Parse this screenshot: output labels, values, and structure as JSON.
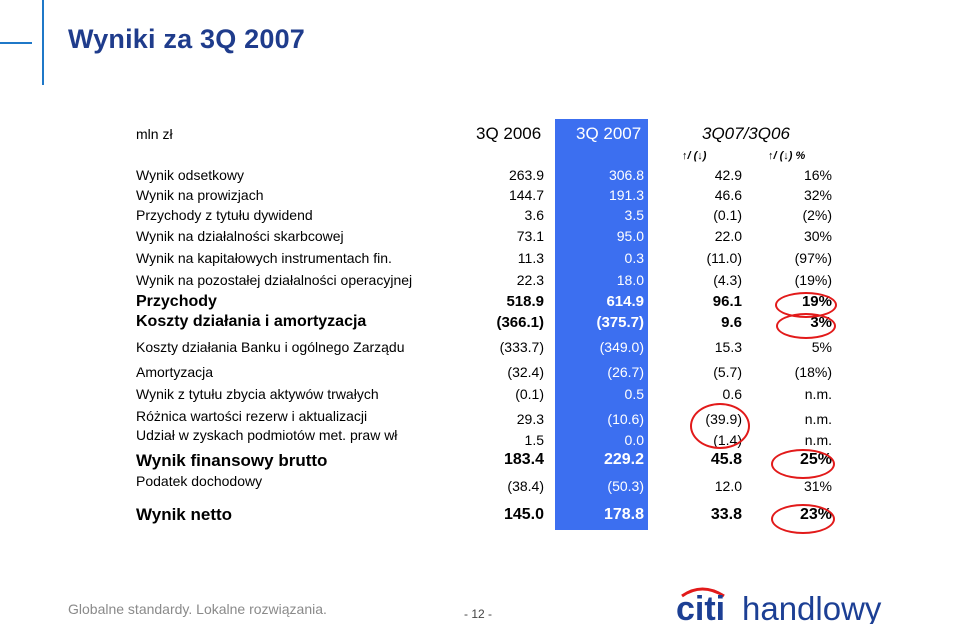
{
  "title": "Wyniki za 3Q 2007",
  "header": {
    "unit": "mln zł",
    "col1": "3Q 2006",
    "col2": "3Q 2007",
    "col3": "3Q07/3Q06",
    "sub_a": "↑/ (↓)",
    "sub_b": "↑/ (↓) %"
  },
  "rows": [
    {
      "label": "Wynik odsetkowy",
      "v1": "263.9",
      "v2": "306.8",
      "v3": "42.9",
      "v4": "16%"
    },
    {
      "label": "Wynik na prowizjach",
      "v1": "144.7",
      "v2": "191.3",
      "v3": "46.6",
      "v4": "32%"
    },
    {
      "label": "Przychody z tytułu dywidend",
      "v1": "3.6",
      "v2": "3.5",
      "v3": "(0.1)",
      "v4": "(2%)"
    },
    {
      "label": "Wynik na działalności skarbcowej",
      "v1": "73.1",
      "v2": "95.0",
      "v3": "22.0",
      "v4": "30%"
    },
    {
      "label": "Wynik na kapitałowych instrumentach fin.",
      "v1": "11.3",
      "v2": "0.3",
      "v3": "(11.0)",
      "v4": "(97%)"
    },
    {
      "label": "Wynik na pozostałej działalności operacyjnej",
      "v1": "22.3",
      "v2": "18.0",
      "v3": "(4.3)",
      "v4": "(19%)"
    },
    {
      "label": "Przychody",
      "v1": "518.9",
      "v2": "614.9",
      "v3": "96.1",
      "v4": "19%"
    },
    {
      "label": "Koszty działania i amortyzacja",
      "v1": "(366.1)",
      "v2": "(375.7)",
      "v3": "9.6",
      "v4": "3%"
    },
    {
      "label": "Koszty działania Banku i ogólnego Zarządu",
      "v1": "(333.7)",
      "v2": "(349.0)",
      "v3": "15.3",
      "v4": "5%"
    },
    {
      "label": "Amortyzacja",
      "v1": "(32.4)",
      "v2": "(26.7)",
      "v3": "(5.7)",
      "v4": "(18%)"
    },
    {
      "label": "Wynik z tytułu zbycia aktywów trwałych",
      "v1": "(0.1)",
      "v2": "0.5",
      "v3": "0.6",
      "v4": "n.m."
    },
    {
      "label": "Różnica wartości rezerw i aktualizacji",
      "v1": "29.3",
      "v2": "(10.6)",
      "v3": "(39.9)",
      "v4": "n.m."
    },
    {
      "label": "Udział w zyskach podmiotów met. praw wł",
      "v1": "1.5",
      "v2": "0.0",
      "v3": "(1.4)",
      "v4": "n.m."
    },
    {
      "label": "Wynik finansowy brutto",
      "v1": "183.4",
      "v2": "229.2",
      "v3": "45.8",
      "v4": "25%"
    },
    {
      "label": "Podatek dochodowy",
      "v1": "(38.4)",
      "v2": "(50.3)",
      "v3": "12.0",
      "v4": "31%"
    },
    {
      "label": "Wynik netto",
      "v1": "145.0",
      "v2": "178.8",
      "v3": "33.8",
      "v4": "23%"
    }
  ],
  "footer": {
    "slogan": "Globalne standardy. Lokalne rozwiązania.",
    "page": "- 12 -",
    "logo_text": "citi handlowy"
  },
  "colors": {
    "title": "#1f3c8c",
    "accent_line": "#1f78c8",
    "highlight_column": "#3c6ff0",
    "circle": "#e21a1a",
    "logo_blue": "#1c3f94",
    "logo_arc": "#e21a1a"
  }
}
